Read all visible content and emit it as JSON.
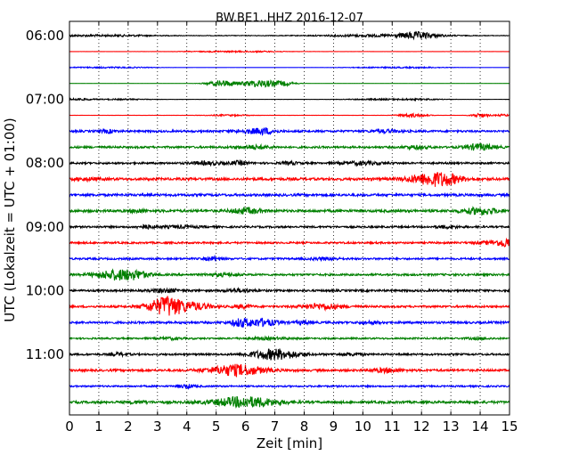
{
  "chart_data": {
    "type": "line",
    "title": "BW.BE1..HHZ 2016-12-07",
    "xlabel": "Zeit  [min]",
    "ylabel": "UTC (Lokalzeit = UTC + 01:00)",
    "xlim": [
      0,
      15
    ],
    "x_ticks": [
      "0",
      "1",
      "2",
      "3",
      "4",
      "5",
      "6",
      "7",
      "8",
      "9",
      "10",
      "11",
      "12",
      "13",
      "14",
      "15"
    ],
    "y_ticks": [
      "06:00",
      "07:00",
      "08:00",
      "09:00",
      "10:00",
      "11:00"
    ],
    "grid": "vertical dotted",
    "row_interval_minutes": 15,
    "first_row": "06:00",
    "colors": [
      "#000000",
      "#ff0000",
      "#0000ff",
      "#008000"
    ],
    "rows": [
      {
        "start": "06:00",
        "color": "black",
        "noise": 0.35,
        "events": [
          [
            0.2,
            0.8,
            1.2
          ],
          [
            2.0,
            0.7,
            1.0
          ],
          [
            10.1,
            1.2,
            1.5
          ],
          [
            11.8,
            3.2,
            0.6
          ],
          [
            12.3,
            0.8,
            0.9
          ]
        ]
      },
      {
        "start": "06:15",
        "color": "red",
        "noise": 0.05,
        "events": [
          [
            5.0,
            0.6,
            1.2
          ],
          [
            6.5,
            0.6,
            1.0
          ]
        ]
      },
      {
        "start": "06:30",
        "color": "blue",
        "noise": 0.05,
        "events": [
          [
            0.5,
            0.6,
            1.2
          ],
          [
            2.0,
            0.6,
            1.0
          ],
          [
            10.5,
            0.6,
            1.2
          ],
          [
            12.0,
            0.6,
            1.0
          ]
        ]
      },
      {
        "start": "06:45",
        "color": "green",
        "noise": 0.05,
        "events": [
          [
            5.2,
            3.6,
            0.5
          ],
          [
            6.5,
            4.2,
            0.6
          ],
          [
            7.3,
            2.2,
            0.4
          ]
        ]
      },
      {
        "start": "07:00",
        "color": "black",
        "noise": 0.05,
        "events": [
          [
            0.3,
            1.2,
            0.5
          ],
          [
            1.8,
            0.7,
            1.0
          ],
          [
            10.3,
            0.7,
            1.0
          ],
          [
            11.8,
            0.8,
            1.0
          ]
        ]
      },
      {
        "start": "07:15",
        "color": "red",
        "noise": 0.05,
        "events": [
          [
            5.4,
            0.9,
            0.8
          ],
          [
            11.7,
            2.2,
            0.5
          ],
          [
            14.0,
            2.4,
            0.3
          ],
          [
            14.8,
            1.2,
            0.3
          ]
        ]
      },
      {
        "start": "07:30",
        "color": "blue",
        "noise": 1.1,
        "events": [
          [
            1.3,
            1.6,
            0.3
          ],
          [
            6.3,
            2.2,
            0.6
          ],
          [
            6.7,
            1.8,
            0.3
          ],
          [
            10.8,
            1.4,
            0.5
          ]
        ]
      },
      {
        "start": "07:45",
        "color": "green",
        "noise": 1.1,
        "events": [
          [
            6.3,
            1.8,
            0.6
          ],
          [
            11.8,
            1.6,
            0.4
          ],
          [
            14.0,
            3.4,
            0.5
          ]
        ]
      },
      {
        "start": "08:00",
        "color": "black",
        "noise": 1.0,
        "events": [
          [
            4.7,
            1.6,
            0.6
          ],
          [
            5.8,
            2.0,
            0.3
          ],
          [
            7.5,
            1.4,
            0.3
          ],
          [
            10.0,
            1.6,
            0.7
          ]
        ]
      },
      {
        "start": "08:15",
        "color": "red",
        "noise": 1.4,
        "events": [
          [
            0.6,
            1.2,
            0.4
          ],
          [
            12.4,
            6.5,
            0.8
          ],
          [
            12.9,
            2.0,
            0.5
          ]
        ]
      },
      {
        "start": "08:30",
        "color": "blue",
        "noise": 1.3,
        "events": []
      },
      {
        "start": "08:45",
        "color": "green",
        "noise": 1.4,
        "events": [
          [
            2.3,
            1.4,
            0.3
          ],
          [
            6.0,
            2.8,
            0.5
          ],
          [
            14.0,
            3.4,
            0.6
          ]
        ]
      },
      {
        "start": "09:00",
        "color": "black",
        "noise": 1.0,
        "events": [
          [
            2.6,
            2.0,
            0.3
          ],
          [
            3.8,
            1.2,
            0.6
          ],
          [
            12.9,
            1.4,
            0.4
          ]
        ]
      },
      {
        "start": "09:15",
        "color": "red",
        "noise": 1.0,
        "events": [
          [
            14.6,
            1.8,
            0.7
          ],
          [
            14.95,
            3.6,
            0.3
          ]
        ]
      },
      {
        "start": "09:30",
        "color": "blue",
        "noise": 1.0,
        "events": [
          [
            4.9,
            2.0,
            0.3
          ],
          [
            8.7,
            1.2,
            0.5
          ]
        ]
      },
      {
        "start": "09:45",
        "color": "green",
        "noise": 1.1,
        "events": [
          [
            1.7,
            5.5,
            0.8
          ],
          [
            2.3,
            1.6,
            0.4
          ],
          [
            5.2,
            1.4,
            0.5
          ]
        ]
      },
      {
        "start": "10:00",
        "color": "black",
        "noise": 1.1,
        "events": [
          [
            3.3,
            1.8,
            0.5
          ],
          [
            5.8,
            1.4,
            0.5
          ]
        ]
      },
      {
        "start": "10:15",
        "color": "red",
        "noise": 1.1,
        "events": [
          [
            3.2,
            8.0,
            0.6
          ],
          [
            3.4,
            2.8,
            0.3
          ],
          [
            4.1,
            4.2,
            0.7
          ],
          [
            5.9,
            1.8,
            0.3
          ],
          [
            8.6,
            3.0,
            0.7
          ]
        ]
      },
      {
        "start": "10:30",
        "color": "blue",
        "noise": 1.2,
        "events": [
          [
            5.8,
            3.4,
            0.3
          ],
          [
            6.5,
            3.8,
            0.6
          ],
          [
            8.0,
            1.6,
            0.3
          ],
          [
            10.3,
            1.2,
            0.4
          ]
        ]
      },
      {
        "start": "10:45",
        "color": "green",
        "noise": 0.9,
        "events": [
          [
            3.5,
            1.0,
            0.4
          ],
          [
            6.8,
            1.0,
            0.8
          ],
          [
            14.0,
            1.0,
            0.4
          ]
        ]
      },
      {
        "start": "11:00",
        "color": "black",
        "noise": 1.0,
        "events": [
          [
            1.7,
            1.6,
            0.3
          ],
          [
            7.0,
            5.8,
            0.8
          ],
          [
            9.6,
            1.2,
            0.4
          ]
        ]
      },
      {
        "start": "11:15",
        "color": "red",
        "noise": 1.2,
        "events": [
          [
            5.7,
            6.0,
            0.9
          ],
          [
            10.8,
            2.0,
            0.5
          ]
        ]
      },
      {
        "start": "11:30",
        "color": "blue",
        "noise": 0.9,
        "events": [
          [
            4.0,
            1.8,
            0.3
          ]
        ]
      },
      {
        "start": "11:45",
        "color": "green",
        "noise": 1.3,
        "events": [
          [
            6.0,
            5.5,
            1.1
          ],
          [
            2.3,
            1.0,
            0.4
          ]
        ]
      }
    ]
  }
}
